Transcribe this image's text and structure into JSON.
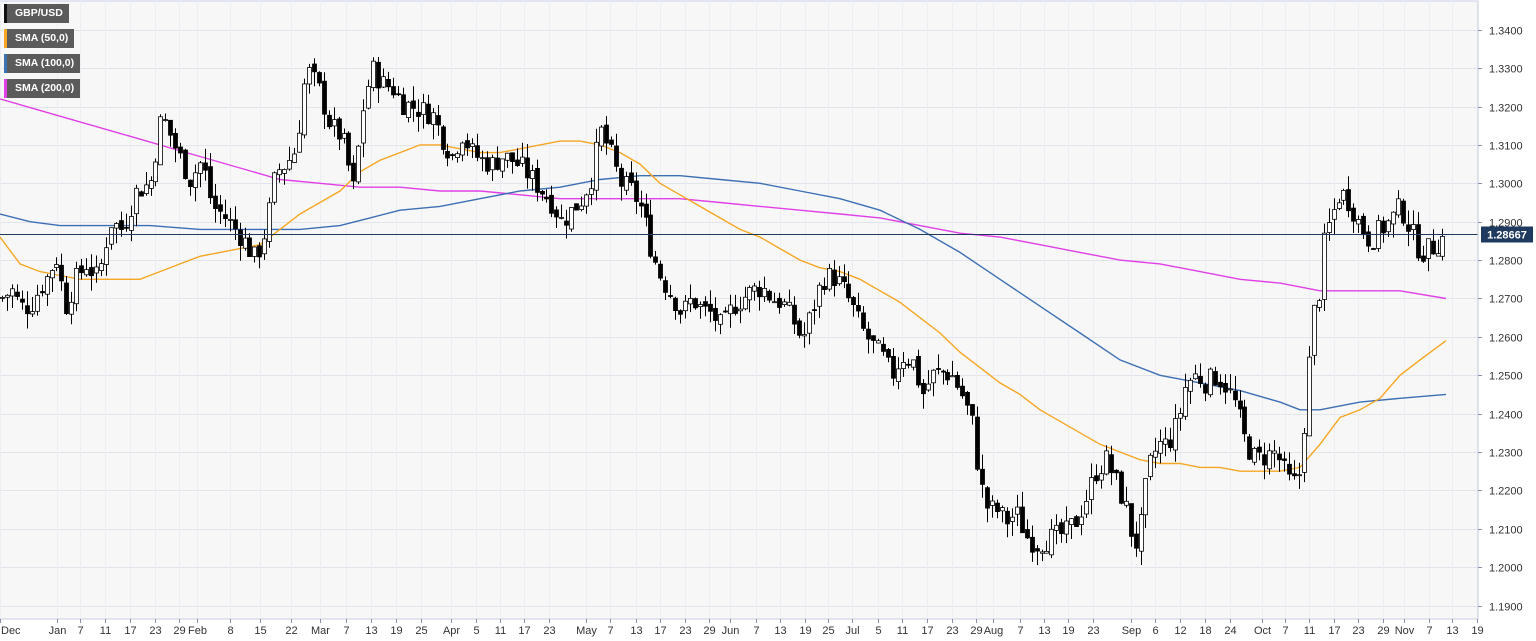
{
  "chart_data": {
    "type": "candlestick",
    "symbol": "GBP/USD",
    "last_price": "1.28667",
    "last_price_value": 1.28667,
    "ylim": [
      1.1865,
      1.3475
    ],
    "y_ticks": [
      "1.1900",
      "1.2000",
      "1.2100",
      "1.2200",
      "1.2300",
      "1.2400",
      "1.2500",
      "1.2600",
      "1.2700",
      "1.2800",
      "1.2900",
      "1.3000",
      "1.3100",
      "1.3200",
      "1.3300",
      "1.3400"
    ],
    "x_ticks": [
      "Dec",
      "Jan",
      "7",
      "11",
      "17",
      "23",
      "29",
      "Feb",
      "8",
      "15",
      "22",
      "Mar",
      "7",
      "13",
      "19",
      "25",
      "Apr",
      "5",
      "11",
      "17",
      "23",
      "May",
      "7",
      "13",
      "17",
      "23",
      "29",
      "Jun",
      "7",
      "13",
      "19",
      "25",
      "Jul",
      "5",
      "11",
      "17",
      "23",
      "29",
      "Aug",
      "7",
      "13",
      "19",
      "23",
      "Sep",
      "6",
      "12",
      "18",
      "24",
      "Oct",
      "7",
      "11",
      "17",
      "23",
      "29",
      "Nov",
      "7",
      "13",
      "19"
    ],
    "grid": true,
    "legend_position": "top-left",
    "colors": {
      "up": "#ffffff",
      "down": "#000000",
      "sma50": "#f5a623",
      "sma100": "#3d6fb3",
      "sma200": "#e040e6",
      "price_line": "#1f3a5f",
      "price_tag": "#1f3a5f"
    },
    "legend": [
      {
        "label": "GBP/USD",
        "color": "#111111"
      },
      {
        "label": "SMA (50,0)",
        "color": "#f5a623"
      },
      {
        "label": "SMA (100,0)",
        "color": "#3d6fb3"
      },
      {
        "label": "SMA (200,0)",
        "color": "#e040e6"
      }
    ],
    "trend_close": [
      [
        0,
        1.27
      ],
      [
        12,
        1.272
      ],
      [
        20,
        1.268
      ],
      [
        30,
        1.268
      ],
      [
        38,
        1.272
      ],
      [
        48,
        1.276
      ],
      [
        56,
        1.281
      ],
      [
        66,
        1.268
      ],
      [
        76,
        1.275
      ],
      [
        86,
        1.279
      ],
      [
        98,
        1.275
      ],
      [
        110,
        1.29
      ],
      [
        122,
        1.288
      ],
      [
        136,
        1.298
      ],
      [
        150,
        1.3
      ],
      [
        162,
        1.318
      ],
      [
        176,
        1.309
      ],
      [
        190,
        1.301
      ],
      [
        202,
        1.306
      ],
      [
        212,
        1.294
      ],
      [
        222,
        1.292
      ],
      [
        232,
        1.289
      ],
      [
        244,
        1.285
      ],
      [
        256,
        1.28
      ],
      [
        266,
        1.288
      ],
      [
        276,
        1.303
      ],
      [
        286,
        1.305
      ],
      [
        296,
        1.309
      ],
      [
        306,
        1.33
      ],
      [
        318,
        1.325
      ],
      [
        330,
        1.315
      ],
      [
        342,
        1.312
      ],
      [
        354,
        1.298
      ],
      [
        362,
        1.318
      ],
      [
        372,
        1.33
      ],
      [
        382,
        1.326
      ],
      [
        392,
        1.325
      ],
      [
        402,
        1.321
      ],
      [
        412,
        1.32
      ],
      [
        422,
        1.319
      ],
      [
        432,
        1.318
      ],
      [
        442,
        1.312
      ],
      [
        452,
        1.307
      ],
      [
        462,
        1.313
      ],
      [
        472,
        1.308
      ],
      [
        482,
        1.306
      ],
      [
        492,
        1.305
      ],
      [
        502,
        1.307
      ],
      [
        512,
        1.306
      ],
      [
        522,
        1.304
      ],
      [
        532,
        1.301
      ],
      [
        542,
        1.298
      ],
      [
        552,
        1.295
      ],
      [
        562,
        1.29
      ],
      [
        572,
        1.293
      ],
      [
        582,
        1.296
      ],
      [
        592,
        1.302
      ],
      [
        600,
        1.314
      ],
      [
        610,
        1.308
      ],
      [
        620,
        1.3
      ],
      [
        632,
        1.298
      ],
      [
        642,
        1.293
      ],
      [
        652,
        1.282
      ],
      [
        662,
        1.275
      ],
      [
        672,
        1.271
      ],
      [
        682,
        1.266
      ],
      [
        692,
        1.27
      ],
      [
        702,
        1.267
      ],
      [
        712,
        1.266
      ],
      [
        722,
        1.262
      ],
      [
        732,
        1.268
      ],
      [
        742,
        1.27
      ],
      [
        752,
        1.272
      ],
      [
        762,
        1.273
      ],
      [
        772,
        1.27
      ],
      [
        782,
        1.269
      ],
      [
        792,
        1.265
      ],
      [
        802,
        1.259
      ],
      [
        812,
        1.267
      ],
      [
        822,
        1.275
      ],
      [
        832,
        1.276
      ],
      [
        842,
        1.273
      ],
      [
        852,
        1.268
      ],
      [
        862,
        1.262
      ],
      [
        872,
        1.258
      ],
      [
        882,
        1.255
      ],
      [
        892,
        1.25
      ],
      [
        902,
        1.255
      ],
      [
        912,
        1.254
      ],
      [
        922,
        1.245
      ],
      [
        932,
        1.25
      ],
      [
        942,
        1.251
      ],
      [
        952,
        1.25
      ],
      [
        962,
        1.245
      ],
      [
        972,
        1.238
      ],
      [
        980,
        1.222
      ],
      [
        988,
        1.215
      ],
      [
        996,
        1.215
      ],
      [
        1006,
        1.212
      ],
      [
        1016,
        1.214
      ],
      [
        1026,
        1.208
      ],
      [
        1036,
        1.206
      ],
      [
        1046,
        1.207
      ],
      [
        1056,
        1.208
      ],
      [
        1066,
        1.209
      ],
      [
        1076,
        1.212
      ],
      [
        1086,
        1.218
      ],
      [
        1096,
        1.225
      ],
      [
        1106,
        1.228
      ],
      [
        1116,
        1.222
      ],
      [
        1126,
        1.215
      ],
      [
        1134,
        1.205
      ],
      [
        1140,
        1.21
      ],
      [
        1148,
        1.225
      ],
      [
        1158,
        1.232
      ],
      [
        1168,
        1.232
      ],
      [
        1178,
        1.238
      ],
      [
        1186,
        1.248
      ],
      [
        1196,
        1.25
      ],
      [
        1206,
        1.248
      ],
      [
        1216,
        1.25
      ],
      [
        1226,
        1.247
      ],
      [
        1236,
        1.242
      ],
      [
        1246,
        1.232
      ],
      [
        1256,
        1.228
      ],
      [
        1266,
        1.229
      ],
      [
        1276,
        1.23
      ],
      [
        1284,
        1.225
      ],
      [
        1290,
        1.222
      ],
      [
        1298,
        1.222
      ],
      [
        1306,
        1.243
      ],
      [
        1312,
        1.265
      ],
      [
        1318,
        1.27
      ],
      [
        1324,
        1.285
      ],
      [
        1330,
        1.29
      ],
      [
        1340,
        1.298
      ],
      [
        1350,
        1.295
      ],
      [
        1360,
        1.289
      ],
      [
        1370,
        1.285
      ],
      [
        1380,
        1.288
      ],
      [
        1390,
        1.29
      ],
      [
        1400,
        1.294
      ],
      [
        1410,
        1.288
      ],
      [
        1420,
        1.282
      ],
      [
        1430,
        1.283
      ],
      [
        1440,
        1.285
      ],
      [
        1446,
        1.28667
      ]
    ],
    "sma50": [
      [
        0,
        1.286
      ],
      [
        20,
        1.279
      ],
      [
        40,
        1.277
      ],
      [
        60,
        1.276
      ],
      [
        80,
        1.275
      ],
      [
        100,
        1.275
      ],
      [
        120,
        1.275
      ],
      [
        140,
        1.275
      ],
      [
        160,
        1.277
      ],
      [
        180,
        1.279
      ],
      [
        200,
        1.281
      ],
      [
        220,
        1.282
      ],
      [
        240,
        1.283
      ],
      [
        260,
        1.284
      ],
      [
        280,
        1.288
      ],
      [
        300,
        1.292
      ],
      [
        320,
        1.295
      ],
      [
        340,
        1.298
      ],
      [
        360,
        1.303
      ],
      [
        380,
        1.306
      ],
      [
        400,
        1.308
      ],
      [
        420,
        1.31
      ],
      [
        440,
        1.31
      ],
      [
        460,
        1.309
      ],
      [
        480,
        1.308
      ],
      [
        500,
        1.308
      ],
      [
        520,
        1.309
      ],
      [
        540,
        1.31
      ],
      [
        560,
        1.311
      ],
      [
        580,
        1.311
      ],
      [
        600,
        1.31
      ],
      [
        620,
        1.308
      ],
      [
        640,
        1.305
      ],
      [
        660,
        1.3
      ],
      [
        680,
        1.297
      ],
      [
        700,
        1.294
      ],
      [
        720,
        1.291
      ],
      [
        740,
        1.288
      ],
      [
        760,
        1.286
      ],
      [
        780,
        1.283
      ],
      [
        800,
        1.28
      ],
      [
        820,
        1.278
      ],
      [
        840,
        1.277
      ],
      [
        860,
        1.275
      ],
      [
        880,
        1.272
      ],
      [
        900,
        1.269
      ],
      [
        920,
        1.265
      ],
      [
        940,
        1.261
      ],
      [
        960,
        1.256
      ],
      [
        980,
        1.252
      ],
      [
        1000,
        1.248
      ],
      [
        1020,
        1.245
      ],
      [
        1040,
        1.241
      ],
      [
        1060,
        1.238
      ],
      [
        1080,
        1.235
      ],
      [
        1100,
        1.232
      ],
      [
        1120,
        1.23
      ],
      [
        1140,
        1.228
      ],
      [
        1160,
        1.227
      ],
      [
        1180,
        1.227
      ],
      [
        1200,
        1.226
      ],
      [
        1220,
        1.226
      ],
      [
        1240,
        1.225
      ],
      [
        1260,
        1.225
      ],
      [
        1280,
        1.225
      ],
      [
        1300,
        1.226
      ],
      [
        1320,
        1.232
      ],
      [
        1340,
        1.239
      ],
      [
        1360,
        1.241
      ],
      [
        1380,
        1.244
      ],
      [
        1400,
        1.25
      ],
      [
        1420,
        1.254
      ],
      [
        1446,
        1.259
      ]
    ],
    "sma100": [
      [
        0,
        1.292
      ],
      [
        30,
        1.29
      ],
      [
        60,
        1.289
      ],
      [
        100,
        1.289
      ],
      [
        150,
        1.289
      ],
      [
        200,
        1.288
      ],
      [
        260,
        1.288
      ],
      [
        300,
        1.288
      ],
      [
        340,
        1.289
      ],
      [
        370,
        1.291
      ],
      [
        400,
        1.293
      ],
      [
        440,
        1.294
      ],
      [
        480,
        1.296
      ],
      [
        520,
        1.298
      ],
      [
        560,
        1.299
      ],
      [
        600,
        1.301
      ],
      [
        640,
        1.302
      ],
      [
        680,
        1.302
      ],
      [
        720,
        1.301
      ],
      [
        760,
        1.3
      ],
      [
        800,
        1.298
      ],
      [
        840,
        1.296
      ],
      [
        880,
        1.293
      ],
      [
        920,
        1.288
      ],
      [
        960,
        1.282
      ],
      [
        1000,
        1.275
      ],
      [
        1040,
        1.268
      ],
      [
        1080,
        1.261
      ],
      [
        1120,
        1.254
      ],
      [
        1160,
        1.25
      ],
      [
        1200,
        1.248
      ],
      [
        1240,
        1.246
      ],
      [
        1280,
        1.243
      ],
      [
        1300,
        1.241
      ],
      [
        1320,
        1.241
      ],
      [
        1360,
        1.243
      ],
      [
        1400,
        1.244
      ],
      [
        1446,
        1.245
      ]
    ],
    "sma200": [
      [
        0,
        1.322
      ],
      [
        40,
        1.319
      ],
      [
        80,
        1.316
      ],
      [
        120,
        1.313
      ],
      [
        160,
        1.31
      ],
      [
        200,
        1.307
      ],
      [
        240,
        1.304
      ],
      [
        280,
        1.301
      ],
      [
        320,
        1.3
      ],
      [
        360,
        1.299
      ],
      [
        400,
        1.299
      ],
      [
        440,
        1.298
      ],
      [
        480,
        1.298
      ],
      [
        520,
        1.297
      ],
      [
        560,
        1.296
      ],
      [
        600,
        1.296
      ],
      [
        640,
        1.296
      ],
      [
        680,
        1.296
      ],
      [
        720,
        1.295
      ],
      [
        760,
        1.294
      ],
      [
        800,
        1.293
      ],
      [
        840,
        1.292
      ],
      [
        880,
        1.291
      ],
      [
        920,
        1.289
      ],
      [
        960,
        1.287
      ],
      [
        1000,
        1.286
      ],
      [
        1040,
        1.284
      ],
      [
        1080,
        1.282
      ],
      [
        1120,
        1.28
      ],
      [
        1160,
        1.279
      ],
      [
        1200,
        1.277
      ],
      [
        1240,
        1.275
      ],
      [
        1280,
        1.274
      ],
      [
        1320,
        1.272
      ],
      [
        1360,
        1.272
      ],
      [
        1400,
        1.272
      ],
      [
        1446,
        1.27
      ]
    ]
  }
}
